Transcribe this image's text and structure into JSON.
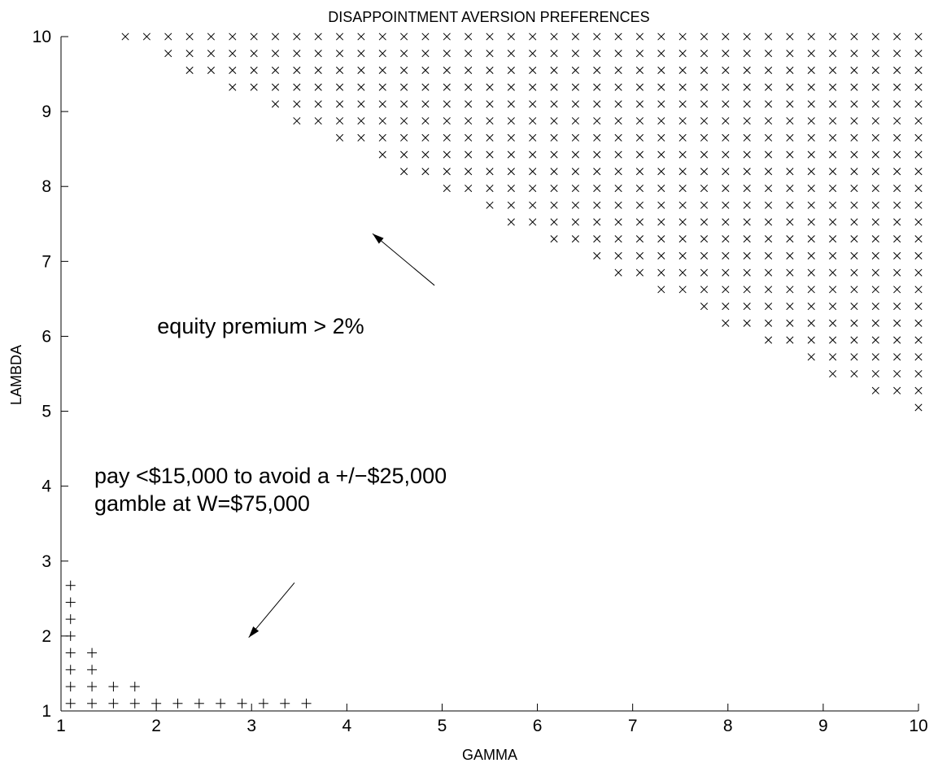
{
  "chart_data": {
    "type": "scatter",
    "title": "DISAPPOINTMENT AVERSION PREFERENCES",
    "xlabel": "GAMMA",
    "ylabel": "LAMBDA",
    "xlim": [
      1,
      10
    ],
    "ylim": [
      1,
      10
    ],
    "xticks": [
      1,
      2,
      3,
      4,
      5,
      6,
      7,
      8,
      9,
      10
    ],
    "yticks": [
      1,
      2,
      3,
      4,
      5,
      6,
      7,
      8,
      9,
      10
    ],
    "grid": false,
    "grid_step": 0.225,
    "series": [
      {
        "marker": "x",
        "rule": "lambda >= 10.225 - 0.6 * (gamma - 1.225)",
        "xmin": 1.225
      },
      {
        "marker": "+",
        "rule": "(gamma - 1) * (lambda - 1) <= 2.0",
        "xmin": 1.1,
        "ymin": 1.1
      }
    ],
    "annotations": [
      {
        "id": "equity",
        "lines": [
          "equity premium > 2%"
        ],
        "arrow_from": [
          4.92,
          6.68
        ],
        "arrow_to": [
          4.27,
          7.37
        ]
      },
      {
        "id": "pay",
        "lines": [
          "pay <$15,000 to avoid a +/−$25,000",
          "gamble at W=$75,000"
        ],
        "arrow_from": [
          3.45,
          2.71
        ],
        "arrow_to": [
          2.97,
          1.98
        ]
      }
    ],
    "annotation_text_anchor": {
      "equity": [
        2.01,
        6.04
      ],
      "pay": [
        1.35,
        4.04
      ]
    },
    "tick_length_units": 0.1
  }
}
